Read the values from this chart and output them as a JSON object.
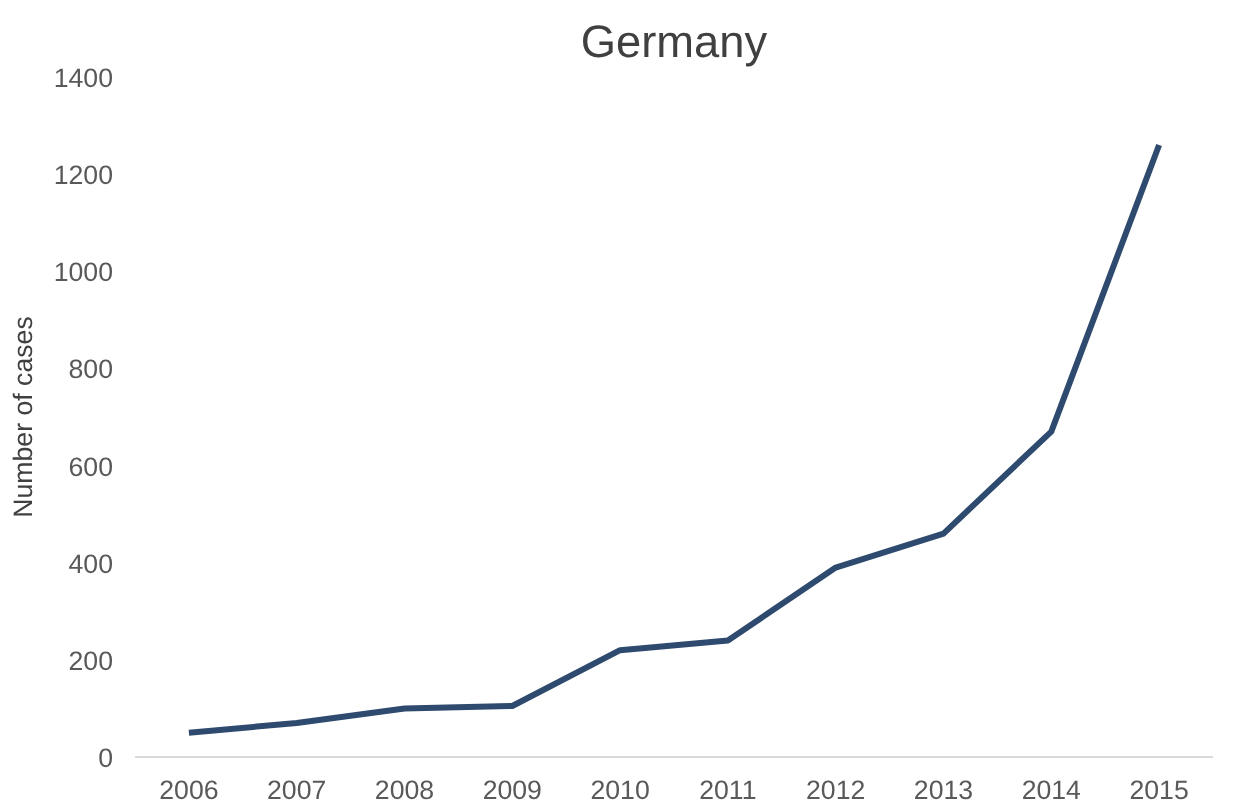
{
  "chart_data": {
    "type": "line",
    "title": "Germany",
    "ylabel": "Number of cases",
    "categories": [
      "2006",
      "2007",
      "2008",
      "2009",
      "2010",
      "2011",
      "2012",
      "2013",
      "2014",
      "2015"
    ],
    "series": [
      {
        "color": "#2e4a6e",
        "values": [
          50,
          70,
          100,
          105,
          220,
          240,
          390,
          460,
          670,
          1260
        ]
      }
    ],
    "ylim": [
      0,
      1400
    ],
    "yticks": [
      0,
      200,
      400,
      600,
      800,
      1000,
      1200,
      1400
    ],
    "grid": false,
    "marker": "none",
    "line_style": "solid"
  }
}
